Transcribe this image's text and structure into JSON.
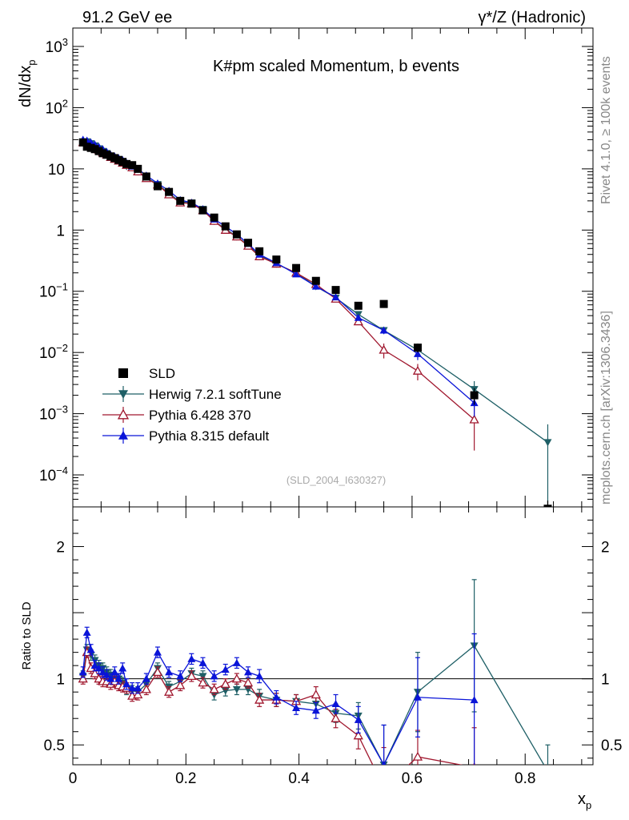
{
  "header": {
    "left": "91.2 GeV ee",
    "right": "γ*/Z (Hadronic)"
  },
  "side": {
    "top": "Rivet 4.1.0, ≥ 100k events",
    "bottom": "mcplots.cern.ch [arXiv:1306.3436]"
  },
  "colors": {
    "sld": "#000000",
    "herwig": "#1e5f66",
    "pythia6": "#a0172e",
    "pythia8": "#0a14d8"
  },
  "chart_data": {
    "type": "scatter",
    "title": "K#pm scaled Momentum, b events",
    "analysis_id": "(SLD_2004_I630327)",
    "xlabel": "x",
    "xlabel_sub": "p",
    "ylabel": "dN/dx",
    "ylabel_sub": "p",
    "ratio_ylabel": "Ratio to SLD",
    "xlim": [
      0,
      0.92
    ],
    "main_ylim": [
      3e-05,
      2000
    ],
    "main_yscale": "log",
    "ratio_ylim": [
      0.35,
      2.3
    ],
    "x_ticks": [
      "0",
      "0.2",
      "0.4",
      "0.6",
      "0.8"
    ],
    "x_tick_values": [
      0,
      0.2,
      0.4,
      0.6,
      0.8
    ],
    "main_y_ticks": [
      {
        "value": 0.0001,
        "base": "10",
        "exp": "−4"
      },
      {
        "value": 0.001,
        "base": "10",
        "exp": "−3"
      },
      {
        "value": 0.01,
        "base": "10",
        "exp": "−2"
      },
      {
        "value": 0.1,
        "base": "10",
        "exp": "−1"
      },
      {
        "value": 1,
        "base": "1",
        "exp": ""
      },
      {
        "value": 10,
        "base": "10",
        "exp": ""
      },
      {
        "value": 100,
        "base": "10",
        "exp": "2"
      },
      {
        "value": 1000,
        "base": "10",
        "exp": "3"
      }
    ],
    "ratio_y_ticks": [
      {
        "value": 0.5,
        "label": "0.5"
      },
      {
        "value": 1,
        "label": "1"
      },
      {
        "value": 2,
        "label": "2"
      }
    ],
    "legend": [
      {
        "name": "SLD",
        "marker": "square-filled",
        "color": "#000000"
      },
      {
        "name": "Herwig 7.2.1 softTune",
        "marker": "triangle-down-filled",
        "color": "#1e5f66"
      },
      {
        "name": "Pythia 6.428 370",
        "marker": "triangle-up-open",
        "color": "#a0172e"
      },
      {
        "name": "Pythia 8.315 default",
        "marker": "triangle-up-filled",
        "color": "#0a14d8"
      }
    ],
    "x": [
      0.018,
      0.025,
      0.032,
      0.039,
      0.046,
      0.053,
      0.06,
      0.067,
      0.074,
      0.081,
      0.088,
      0.095,
      0.105,
      0.115,
      0.13,
      0.15,
      0.17,
      0.19,
      0.21,
      0.23,
      0.25,
      0.27,
      0.29,
      0.31,
      0.33,
      0.36,
      0.395,
      0.43,
      0.465,
      0.505,
      0.55,
      0.61,
      0.71,
      0.84
    ],
    "sld": [
      27,
      23,
      22,
      21,
      19.5,
      18,
      17,
      16,
      15,
      14,
      13,
      12,
      11.5,
      10,
      7.5,
      5.2,
      4.2,
      3.0,
      2.7,
      2.1,
      1.6,
      1.15,
      0.85,
      0.62,
      0.45,
      0.33,
      0.24,
      0.148,
      0.105,
      0.058,
      0.062,
      0.012,
      0.002,
      2.8e-05
    ],
    "sld_err": [
      1,
      1,
      1,
      0.8,
      0.8,
      0.7,
      0.7,
      0.6,
      0.6,
      0.6,
      0.5,
      0.5,
      0.5,
      0.4,
      0.3,
      0.2,
      0.2,
      0.12,
      0.1,
      0.08,
      0.06,
      0.05,
      0.04,
      0.03,
      0.02,
      0.015,
      0.012,
      0.01,
      0.008,
      0.005,
      0.006,
      0.002,
      0.0006,
      1e-05
    ],
    "series": [
      {
        "name": "Herwig 7.2.1 softTune",
        "key": "herwig",
        "x": [
          0.018,
          0.025,
          0.032,
          0.039,
          0.046,
          0.053,
          0.06,
          0.067,
          0.074,
          0.081,
          0.088,
          0.095,
          0.105,
          0.115,
          0.13,
          0.15,
          0.17,
          0.19,
          0.21,
          0.23,
          0.25,
          0.27,
          0.29,
          0.31,
          0.33,
          0.36,
          0.395,
          0.43,
          0.465,
          0.505,
          0.55,
          0.61,
          0.71,
          0.84
        ],
        "values": [
          28,
          28,
          26,
          24,
          21.5,
          19.5,
          18,
          16,
          15,
          14,
          12.5,
          11,
          10.5,
          9,
          7.2,
          5.6,
          4.0,
          2.9,
          2.8,
          2.2,
          1.4,
          1.05,
          0.78,
          0.57,
          0.39,
          0.28,
          0.2,
          0.12,
          0.078,
          0.042,
          0.023,
          0.011,
          0.0025,
          0.00034
        ],
        "err": [
          0.3,
          0.3,
          0.3,
          0.3,
          0.3,
          0.2,
          0.2,
          0.2,
          0.2,
          0.2,
          0.2,
          0.2,
          0.2,
          0.2,
          0.1,
          0.1,
          0.1,
          0.06,
          0.05,
          0.04,
          0.03,
          0.025,
          0.02,
          0.015,
          0.012,
          0.01,
          0.008,
          0.006,
          0.004,
          0.003,
          0.003,
          0.002,
          0.0009,
          0.00033
        ],
        "ratio": [
          1.02,
          1.22,
          1.18,
          1.14,
          1.1,
          1.08,
          1.05,
          1.03,
          1.0,
          1.0,
          0.97,
          0.92,
          0.91,
          0.9,
          0.96,
          1.08,
          0.94,
          0.98,
          1.04,
          1.02,
          0.88,
          0.91,
          0.92,
          0.92,
          0.87,
          0.84,
          0.83,
          0.81,
          0.74,
          0.72,
          0.35,
          0.9,
          1.25,
          0.3
        ],
        "ratio_err": [
          0.04,
          0.04,
          0.04,
          0.04,
          0.04,
          0.04,
          0.04,
          0.04,
          0.04,
          0.04,
          0.04,
          0.04,
          0.04,
          0.04,
          0.04,
          0.04,
          0.04,
          0.04,
          0.04,
          0.04,
          0.04,
          0.04,
          0.04,
          0.04,
          0.05,
          0.05,
          0.05,
          0.06,
          0.07,
          0.1,
          0.3,
          0.3,
          0.5,
          0.2
        ]
      },
      {
        "name": "Pythia 6.428 370",
        "key": "pythia6",
        "x": [
          0.018,
          0.025,
          0.032,
          0.039,
          0.046,
          0.053,
          0.06,
          0.067,
          0.074,
          0.081,
          0.088,
          0.095,
          0.105,
          0.115,
          0.13,
          0.15,
          0.17,
          0.19,
          0.21,
          0.23,
          0.25,
          0.27,
          0.29,
          0.31,
          0.33,
          0.36,
          0.395,
          0.43,
          0.465,
          0.505,
          0.55,
          0.61,
          0.71
        ],
        "values": [
          27,
          27,
          24,
          22,
          20.5,
          18.5,
          17,
          15.5,
          14.5,
          13.5,
          12.5,
          11.5,
          10.5,
          9,
          7,
          5.5,
          3.8,
          2.8,
          2.7,
          2.1,
          1.4,
          1.0,
          0.78,
          0.55,
          0.37,
          0.28,
          0.2,
          0.13,
          0.075,
          0.032,
          0.011,
          0.005,
          0.0008
        ],
        "err": [
          0.3,
          0.3,
          0.3,
          0.3,
          0.3,
          0.2,
          0.2,
          0.2,
          0.2,
          0.2,
          0.2,
          0.2,
          0.2,
          0.2,
          0.1,
          0.1,
          0.1,
          0.06,
          0.05,
          0.04,
          0.03,
          0.025,
          0.02,
          0.015,
          0.012,
          0.01,
          0.008,
          0.006,
          0.004,
          0.003,
          0.003,
          0.0015,
          0.00055
        ],
        "ratio": [
          1.0,
          1.2,
          1.08,
          1.04,
          1.0,
          0.98,
          0.98,
          0.96,
          0.98,
          0.95,
          0.94,
          0.93,
          0.87,
          0.88,
          0.92,
          1.05,
          0.9,
          0.95,
          1.02,
          0.97,
          0.92,
          0.96,
          1.0,
          0.97,
          0.84,
          0.84,
          0.83,
          0.88,
          0.7,
          0.57,
          0.18,
          0.41,
          0.33
        ],
        "ratio_err": [
          0.04,
          0.04,
          0.04,
          0.04,
          0.04,
          0.04,
          0.04,
          0.04,
          0.04,
          0.04,
          0.04,
          0.04,
          0.04,
          0.04,
          0.04,
          0.04,
          0.04,
          0.04,
          0.04,
          0.04,
          0.04,
          0.04,
          0.04,
          0.04,
          0.05,
          0.05,
          0.05,
          0.06,
          0.07,
          0.1,
          0.3,
          0.2,
          0.3
        ]
      },
      {
        "name": "Pythia 8.315 default",
        "key": "pythia8",
        "x": [
          0.018,
          0.025,
          0.032,
          0.039,
          0.046,
          0.053,
          0.06,
          0.067,
          0.074,
          0.081,
          0.088,
          0.095,
          0.105,
          0.115,
          0.13,
          0.15,
          0.17,
          0.19,
          0.21,
          0.23,
          0.25,
          0.27,
          0.29,
          0.31,
          0.33,
          0.36,
          0.395,
          0.43,
          0.465,
          0.505,
          0.55,
          0.61,
          0.71
        ],
        "values": [
          30,
          29,
          27,
          25,
          23,
          21,
          19,
          17,
          16,
          15,
          14,
          12.5,
          11,
          10,
          7.8,
          5.8,
          4.4,
          3.1,
          2.8,
          2.2,
          1.5,
          1.15,
          0.85,
          0.6,
          0.4,
          0.29,
          0.19,
          0.12,
          0.08,
          0.037,
          0.023,
          0.0095,
          0.0015
        ],
        "err": [
          0.3,
          0.3,
          0.3,
          0.3,
          0.3,
          0.2,
          0.2,
          0.2,
          0.2,
          0.2,
          0.2,
          0.2,
          0.2,
          0.2,
          0.1,
          0.1,
          0.1,
          0.06,
          0.05,
          0.04,
          0.03,
          0.025,
          0.02,
          0.015,
          0.012,
          0.01,
          0.008,
          0.006,
          0.004,
          0.003,
          0.003,
          0.002,
          0.0006
        ],
        "ratio": [
          1.05,
          1.35,
          1.22,
          1.1,
          1.08,
          1.05,
          1.03,
          1.0,
          1.05,
          1.0,
          1.08,
          0.96,
          0.93,
          0.93,
          1.0,
          1.2,
          1.05,
          1.02,
          1.15,
          1.12,
          1.02,
          1.07,
          1.12,
          1.05,
          1.02,
          0.86,
          0.78,
          0.76,
          0.81,
          0.69,
          0.35,
          0.86,
          0.84
        ],
        "ratio_err": [
          0.04,
          0.04,
          0.04,
          0.04,
          0.04,
          0.04,
          0.04,
          0.04,
          0.04,
          0.04,
          0.04,
          0.04,
          0.04,
          0.04,
          0.04,
          0.04,
          0.04,
          0.04,
          0.04,
          0.04,
          0.04,
          0.04,
          0.04,
          0.04,
          0.05,
          0.05,
          0.05,
          0.06,
          0.07,
          0.1,
          0.3,
          0.3,
          0.5
        ]
      }
    ]
  }
}
